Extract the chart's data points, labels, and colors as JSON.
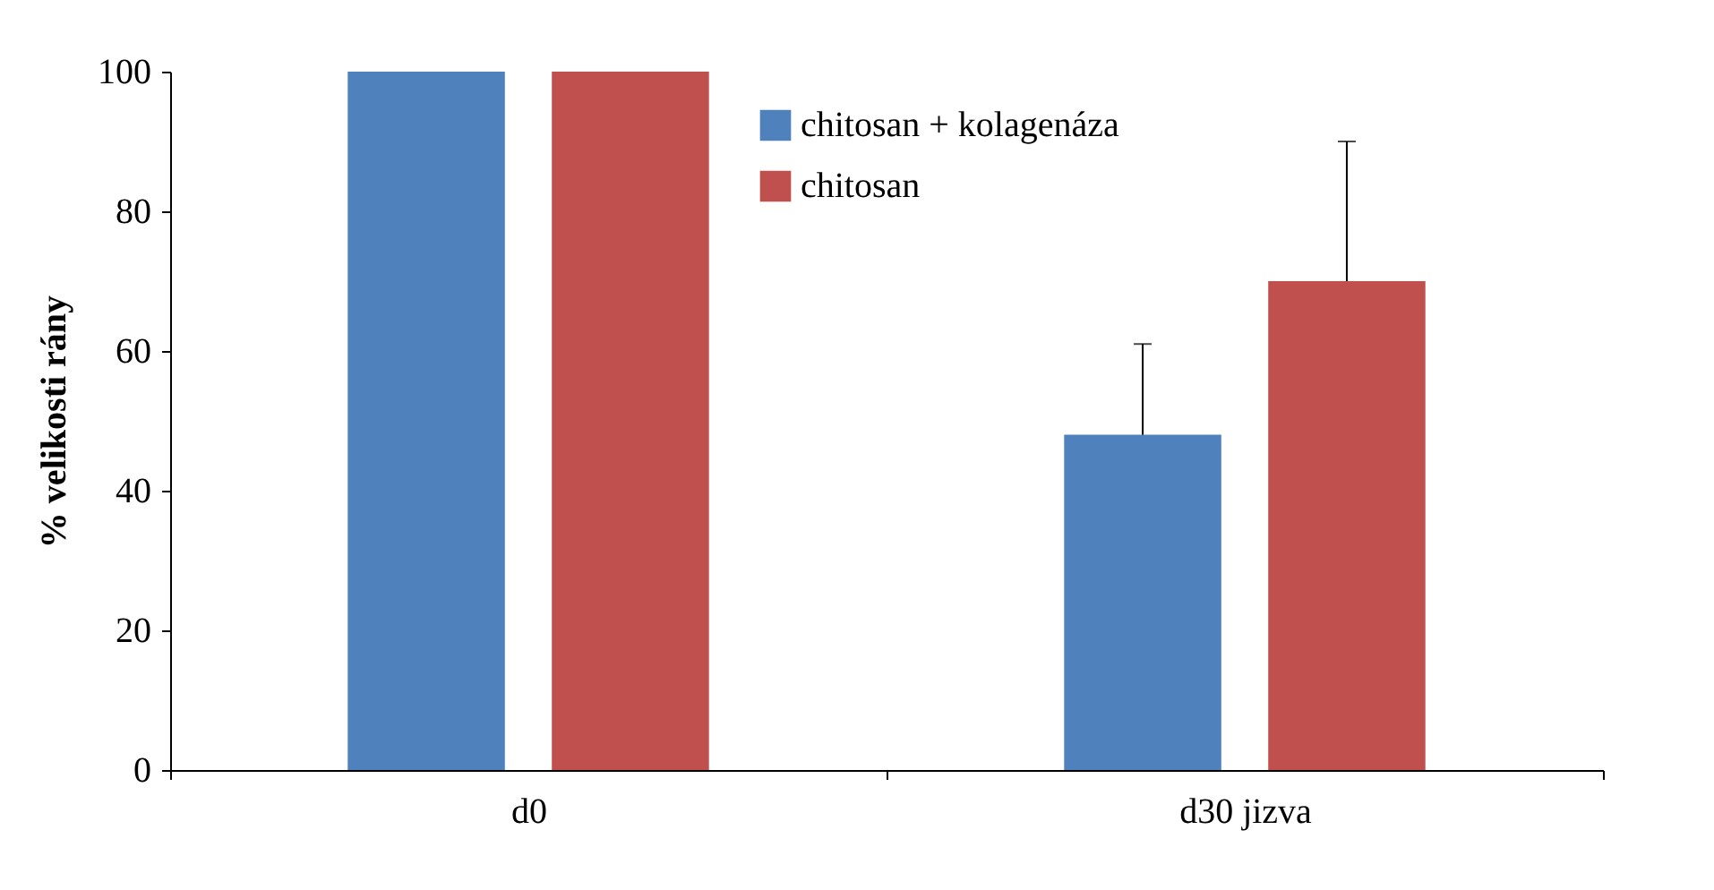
{
  "chart_data": {
    "type": "bar",
    "ylabel": "% velikosti   rány",
    "categories": [
      "d0",
      "d30 jizva"
    ],
    "series": [
      {
        "name": "chitosan + kolagenáza",
        "color": "#4f81bd",
        "values": [
          100,
          48
        ],
        "errors": [
          null,
          [
            48,
            61
          ]
        ]
      },
      {
        "name": "chitosan",
        "color": "#c0504d",
        "values": [
          100,
          70
        ],
        "errors": [
          null,
          [
            70,
            90
          ]
        ]
      }
    ],
    "ylim": [
      0,
      100
    ],
    "yticks": [
      0,
      20,
      40,
      60,
      80,
      100
    ],
    "grid": false,
    "legend": "top right"
  }
}
